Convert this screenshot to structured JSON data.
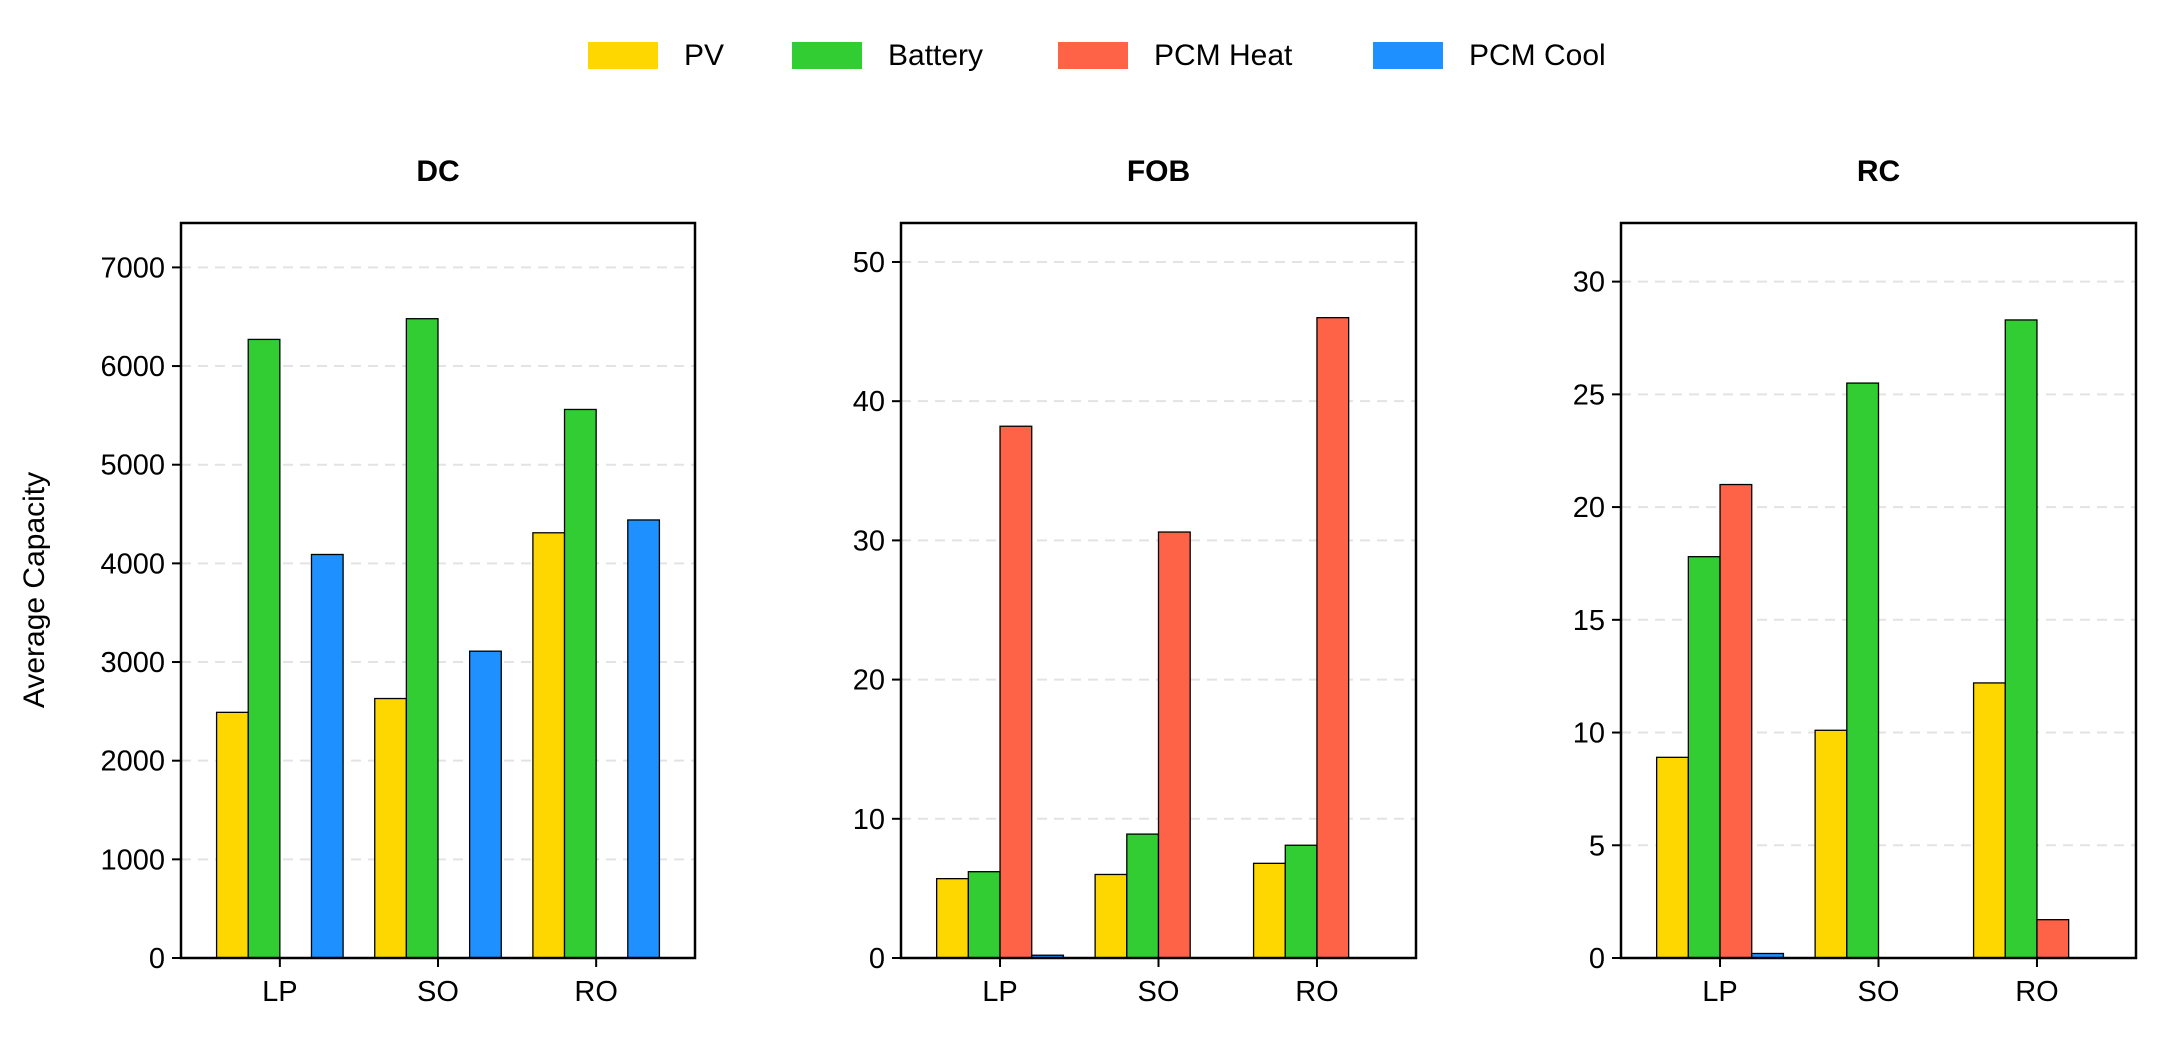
{
  "chart_data": {
    "type": "bar",
    "legend": {
      "placement": "top-center",
      "entries": [
        {
          "name": "PV",
          "color": "#FFD700"
        },
        {
          "name": "Battery",
          "color": "#32CD32"
        },
        {
          "name": "PCM Heat",
          "color": "#FF6347"
        },
        {
          "name": "PCM Cool",
          "color": "#1E90FF"
        }
      ]
    },
    "ylabel": "Average Capacity",
    "grid": "y-dashed",
    "panels": [
      {
        "title": "DC",
        "categories": [
          "LP",
          "SO",
          "RO"
        ],
        "ylim": [
          0,
          7450
        ],
        "yticks": [
          0,
          1000,
          2000,
          3000,
          4000,
          5000,
          6000,
          7000
        ],
        "series": [
          {
            "name": "PV",
            "values": [
              2490,
              2630,
              4310
            ]
          },
          {
            "name": "Battery",
            "values": [
              6270,
              6480,
              5560
            ]
          },
          {
            "name": "PCM Heat",
            "values": [
              0,
              0,
              0
            ]
          },
          {
            "name": "PCM Cool",
            "values": [
              4090,
              3110,
              4440
            ]
          }
        ]
      },
      {
        "title": "FOB",
        "categories": [
          "LP",
          "SO",
          "RO"
        ],
        "ylim": [
          0,
          52.8
        ],
        "yticks": [
          0,
          10,
          20,
          30,
          40,
          50
        ],
        "series": [
          {
            "name": "PV",
            "values": [
              5.7,
              6.0,
              6.8
            ]
          },
          {
            "name": "Battery",
            "values": [
              6.2,
              8.9,
              8.1
            ]
          },
          {
            "name": "PCM Heat",
            "values": [
              38.2,
              30.6,
              46.0
            ]
          },
          {
            "name": "PCM Cool",
            "values": [
              0.2,
              0,
              0
            ]
          }
        ]
      },
      {
        "title": "RC",
        "categories": [
          "LP",
          "SO",
          "RO"
        ],
        "ylim": [
          0,
          32.6
        ],
        "yticks": [
          0,
          5,
          10,
          15,
          20,
          25,
          30
        ],
        "series": [
          {
            "name": "PV",
            "values": [
              8.9,
              10.1,
              12.2
            ]
          },
          {
            "name": "Battery",
            "values": [
              17.8,
              25.5,
              28.3
            ]
          },
          {
            "name": "PCM Heat",
            "values": [
              21.0,
              0,
              1.7
            ]
          },
          {
            "name": "PCM Cool",
            "values": [
              0.2,
              0,
              0
            ]
          }
        ]
      }
    ]
  }
}
